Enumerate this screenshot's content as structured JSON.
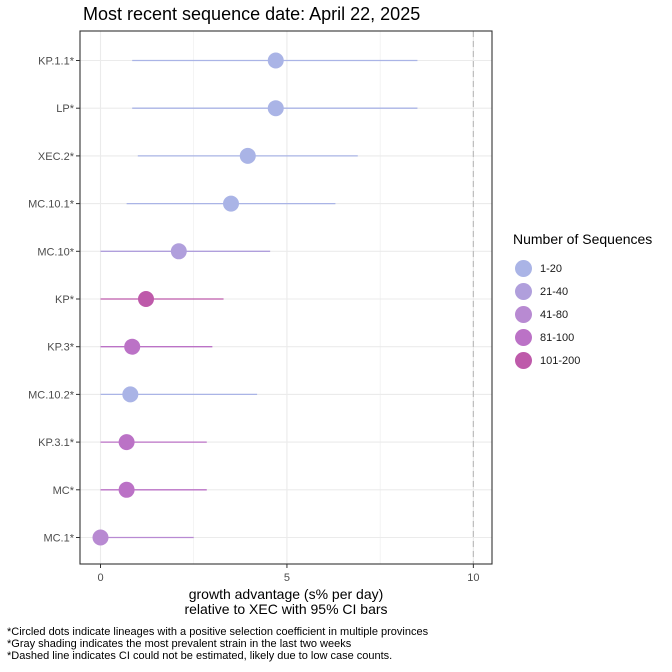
{
  "title": "Most recent sequence date: April 22, 2025",
  "xlabel_line1": "growth advantage (s% per day)",
  "xlabel_line2": "relative to  XEC  with 95% CI bars",
  "legend": {
    "title": "Number of Sequences",
    "items": [
      {
        "label": "1-20",
        "color": "#aab4e6"
      },
      {
        "label": "21-40",
        "color": "#b09fdc"
      },
      {
        "label": "41-80",
        "color": "#b88ad2"
      },
      {
        "label": "81-100",
        "color": "#bb72c6"
      },
      {
        "label": "101-200",
        "color": "#be5aaa"
      }
    ]
  },
  "footnotes": [
    "*Circled dots indicate lineages with a positive selection coefficient in multiple provinces",
    "*Gray shading indicates the most prevalent strain in the last two weeks",
    "*Dashed line indicates CI could not be estimated, likely due to low case counts."
  ],
  "chart_data": {
    "type": "scatter",
    "title": "Most recent sequence date: April 22, 2025",
    "xlabel": "growth advantage (s% per day) relative to  XEC  with 95% CI bars",
    "ylabel": "",
    "xlim": [
      -0.55,
      10.5
    ],
    "xticks": [
      0,
      5,
      10
    ],
    "grid": true,
    "dashed_vline": 10,
    "legend_position": "right",
    "categories": [
      "KP.1.1*",
      "LP*",
      "XEC.2*",
      "MC.10.1*",
      "MC.10*",
      "KP*",
      "KP.3*",
      "MC.10.2*",
      "KP.3.1*",
      "MC*",
      "MC.1*"
    ],
    "points": [
      {
        "lineage": "KP.1.1*",
        "estimate": 4.7,
        "ci_low": 0.85,
        "ci_high": 8.5,
        "sequences": "1-20"
      },
      {
        "lineage": "LP*",
        "estimate": 4.7,
        "ci_low": 0.85,
        "ci_high": 8.5,
        "sequences": "1-20"
      },
      {
        "lineage": "XEC.2*",
        "estimate": 3.95,
        "ci_low": 1.0,
        "ci_high": 6.9,
        "sequences": "1-20"
      },
      {
        "lineage": "MC.10.1*",
        "estimate": 3.5,
        "ci_low": 0.7,
        "ci_high": 6.3,
        "sequences": "1-20"
      },
      {
        "lineage": "MC.10*",
        "estimate": 2.1,
        "ci_low": 0.0,
        "ci_high": 4.55,
        "sequences": "21-40"
      },
      {
        "lineage": "KP*",
        "estimate": 1.22,
        "ci_low": 0.0,
        "ci_high": 3.3,
        "sequences": "101-200"
      },
      {
        "lineage": "KP.3*",
        "estimate": 0.85,
        "ci_low": 0.0,
        "ci_high": 3.0,
        "sequences": "81-100"
      },
      {
        "lineage": "MC.10.2*",
        "estimate": 0.8,
        "ci_low": 0.0,
        "ci_high": 4.2,
        "sequences": "1-20"
      },
      {
        "lineage": "KP.3.1*",
        "estimate": 0.7,
        "ci_low": 0.0,
        "ci_high": 2.85,
        "sequences": "81-100"
      },
      {
        "lineage": "MC*",
        "estimate": 0.7,
        "ci_low": 0.0,
        "ci_high": 2.85,
        "sequences": "81-100"
      },
      {
        "lineage": "MC.1*",
        "estimate": 0.0,
        "ci_low": 0.0,
        "ci_high": 2.5,
        "sequences": "41-80"
      }
    ]
  }
}
